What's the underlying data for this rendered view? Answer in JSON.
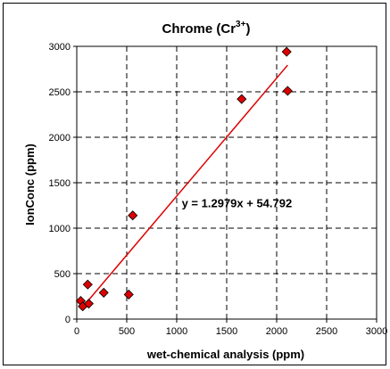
{
  "chart_data": {
    "type": "scatter",
    "title": "Chrome (Cr",
    "title_superscript": "3+",
    "title_suffix": ")",
    "xlabel": "wet-chemical analysis (ppm)",
    "ylabel": "IonConc (ppm)",
    "xlim": [
      0,
      3000
    ],
    "ylim": [
      0,
      3000
    ],
    "xticks": [
      "0",
      "500",
      "1000",
      "1500",
      "2000",
      "2500",
      "3000"
    ],
    "yticks": [
      "0",
      "500",
      "1000",
      "1500",
      "2000",
      "2500",
      "3000"
    ],
    "grid": true,
    "grid_style": "dashed",
    "marker": "diamond",
    "marker_color": "#dd0000",
    "trendline_color": "#dd0000",
    "points": [
      {
        "x": 40,
        "y": 200
      },
      {
        "x": 60,
        "y": 140
      },
      {
        "x": 110,
        "y": 380
      },
      {
        "x": 120,
        "y": 170
      },
      {
        "x": 270,
        "y": 290
      },
      {
        "x": 520,
        "y": 270
      },
      {
        "x": 560,
        "y": 1140
      },
      {
        "x": 1650,
        "y": 2420
      },
      {
        "x": 2100,
        "y": 2940
      },
      {
        "x": 2110,
        "y": 2510
      }
    ],
    "trendline": {
      "slope": 1.2979,
      "intercept": 54.792,
      "x_range": [
        40,
        2110
      ],
      "equation_label": "y = 1.2979x + 54.792",
      "label_position": {
        "x": 1050,
        "y": 1230
      }
    }
  }
}
